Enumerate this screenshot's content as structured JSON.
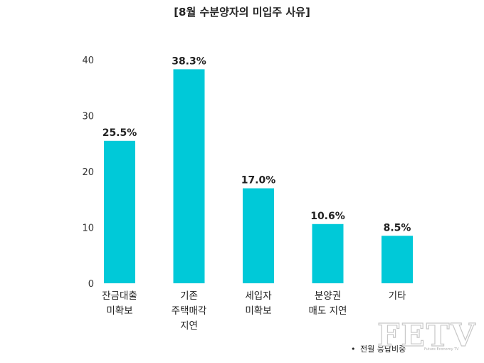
{
  "chart_data": {
    "type": "bar",
    "title": "[8월 수분양자의 미입주 사유]",
    "categories": [
      [
        "잔금대출",
        "미확보"
      ],
      [
        "기존",
        "주택매각",
        "지연"
      ],
      [
        "세입자",
        "미확보"
      ],
      [
        "분양권",
        "매도 지연"
      ],
      [
        "기타"
      ]
    ],
    "values": [
      25.5,
      38.3,
      17.0,
      10.6,
      8.5
    ],
    "value_labels": [
      "25.5%",
      "38.3%",
      "17.0%",
      "10.6%",
      "8.5%"
    ],
    "ylim": [
      0,
      40
    ],
    "yticks": [
      0,
      10,
      20,
      30,
      40
    ],
    "grid": false,
    "bar_color": "#00c9d8",
    "legend": {
      "marker": "•",
      "label": "전월 응답비중",
      "position": "bottom-right"
    }
  },
  "watermark": {
    "text": "FETV",
    "subtext": "Future Economy TV"
  }
}
